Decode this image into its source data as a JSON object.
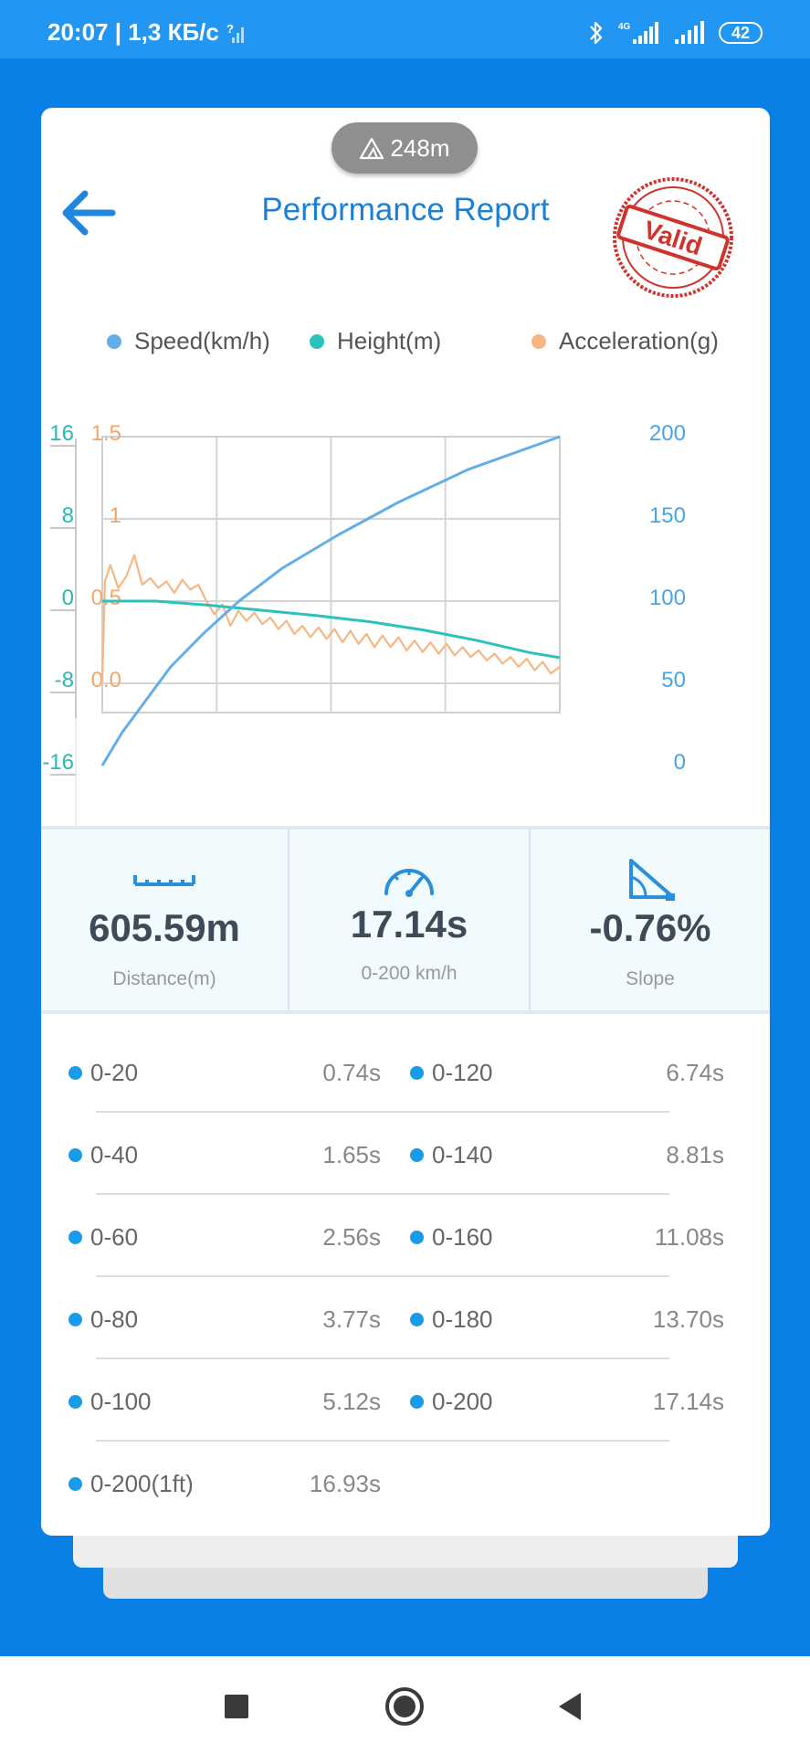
{
  "status_bar": {
    "time_speed": "20:07 | 1,3 КБ/с",
    "network_type": "4G",
    "battery": "42"
  },
  "header": {
    "altitude": "248m",
    "title": "Performance Report",
    "stamp_text": "Valid",
    "stamp_color": "#d0332b"
  },
  "legend": [
    {
      "label": "Speed(km/h)",
      "color": "#64aee8"
    },
    {
      "label": "Height(m)",
      "color": "#2bc2bd"
    },
    {
      "label": "Acceleration(g)",
      "color": "#f5b783"
    }
  ],
  "chart_data": {
    "type": "line",
    "axes": {
      "height_ticks": [
        "16",
        "8",
        "0",
        "-8",
        "-16"
      ],
      "acceleration_ticks": [
        "1.5",
        "1",
        "0.5",
        "0.0"
      ],
      "speed_ticks": [
        "200",
        "150",
        "100",
        "50",
        "0"
      ],
      "speed_range": [
        0,
        200
      ],
      "height_range": [
        -16,
        16
      ],
      "acceleration_range": [
        -0.5,
        1.5
      ],
      "x_range": [
        0,
        17.14
      ],
      "grid": true
    },
    "series": [
      {
        "name": "Speed(km/h)",
        "color": "#64aee8",
        "x": [
          0,
          0.74,
          1.65,
          2.56,
          3.77,
          5.12,
          6.74,
          8.81,
          11.08,
          13.7,
          17.14
        ],
        "values": [
          0,
          20,
          40,
          60,
          80,
          100,
          120,
          140,
          160,
          180,
          200
        ]
      },
      {
        "name": "Height(m)",
        "color": "#2bc2bd",
        "x": [
          0,
          2,
          4,
          6,
          8,
          10,
          12,
          14,
          16,
          17.14
        ],
        "values": [
          0,
          0,
          -0.4,
          -0.9,
          -1.4,
          -2.0,
          -2.8,
          -3.8,
          -5.0,
          -5.5
        ]
      },
      {
        "name": "Acceleration(g)",
        "color": "#f5b783",
        "x": [
          0,
          0.1,
          0.3,
          0.6,
          0.9,
          1.2,
          1.5,
          1.8,
          2.1,
          2.4,
          2.7,
          3.0,
          3.3,
          3.6,
          3.9,
          4.2,
          4.5,
          4.8,
          5.1,
          5.4,
          5.7,
          6.0,
          6.3,
          6.6,
          6.9,
          7.2,
          7.5,
          7.8,
          8.1,
          8.4,
          8.7,
          9.0,
          9.3,
          9.6,
          9.9,
          10.2,
          10.5,
          10.8,
          11.1,
          11.4,
          11.7,
          12.0,
          12.3,
          12.6,
          12.9,
          13.2,
          13.5,
          13.8,
          14.1,
          14.4,
          14.7,
          15.0,
          15.3,
          15.6,
          15.9,
          16.2,
          16.5,
          16.8,
          17.14
        ],
        "values": [
          0.0,
          0.62,
          0.72,
          0.58,
          0.65,
          0.78,
          0.6,
          0.64,
          0.58,
          0.62,
          0.55,
          0.63,
          0.57,
          0.6,
          0.5,
          0.42,
          0.48,
          0.35,
          0.44,
          0.38,
          0.43,
          0.36,
          0.4,
          0.33,
          0.38,
          0.3,
          0.35,
          0.28,
          0.34,
          0.27,
          0.33,
          0.25,
          0.32,
          0.24,
          0.3,
          0.22,
          0.29,
          0.22,
          0.28,
          0.2,
          0.26,
          0.19,
          0.25,
          0.18,
          0.24,
          0.17,
          0.22,
          0.16,
          0.2,
          0.14,
          0.18,
          0.12,
          0.16,
          0.1,
          0.15,
          0.08,
          0.13,
          0.06,
          0.1
        ]
      }
    ]
  },
  "stats": [
    {
      "icon": "ruler-icon",
      "value": "605.59m",
      "label": "Distance(m)"
    },
    {
      "icon": "speedometer-icon",
      "value": "17.14s",
      "label": "0-200 km/h"
    },
    {
      "icon": "slope-icon",
      "value": "-0.76%",
      "label": "Slope"
    }
  ],
  "times": [
    {
      "left_label": "0-20",
      "left_value": "0.74s",
      "right_label": "0-120",
      "right_value": "6.74s"
    },
    {
      "left_label": "0-40",
      "left_value": "1.65s",
      "right_label": "0-140",
      "right_value": "8.81s"
    },
    {
      "left_label": "0-60",
      "left_value": "2.56s",
      "right_label": "0-160",
      "right_value": "11.08s"
    },
    {
      "left_label": "0-80",
      "left_value": "3.77s",
      "right_label": "0-180",
      "right_value": "13.70s"
    },
    {
      "left_label": "0-100",
      "left_value": "5.12s",
      "right_label": "0-200",
      "right_value": "17.14s"
    },
    {
      "left_label": "0-200(1ft)",
      "left_value": "16.93s",
      "right_label": "",
      "right_value": ""
    }
  ],
  "nav": [
    "recents-button",
    "home-button",
    "back-nav-button"
  ]
}
